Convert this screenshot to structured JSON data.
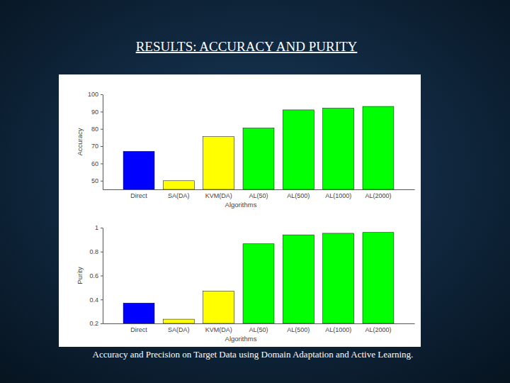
{
  "header": {
    "title": "RESULTS: ACCURACY AND PURITY"
  },
  "caption": "Accuracy and Precision on Target Data using Domain Adaptation and Active Learning.",
  "chart_data": [
    {
      "type": "bar",
      "x_label": "Algorithms",
      "y_label": "Accuracy",
      "categories": [
        "Direct",
        "SA(DA)",
        "KVM(DA)",
        "AL(50)",
        "AL(500)",
        "AL(1000)",
        "AL(2000)"
      ],
      "values": [
        67,
        50,
        75.5,
        80.5,
        91,
        92,
        93
      ],
      "colors": [
        "#0000ff",
        "#ffff00",
        "#ffff00",
        "#00ff00",
        "#00ff00",
        "#00ff00",
        "#00ff00"
      ],
      "ylim": [
        45,
        100
      ],
      "yticks": [
        50,
        60,
        70,
        80,
        90,
        100
      ]
    },
    {
      "type": "bar",
      "x_label": "Algorithms",
      "y_label": "Purity",
      "categories": [
        "Direct",
        "SA(DA)",
        "KVM(DA)",
        "AL(50)",
        "AL(500)",
        "AL(1000)",
        "AL(2000)"
      ],
      "values": [
        0.37,
        0.235,
        0.47,
        0.865,
        0.94,
        0.953,
        0.96
      ],
      "colors": [
        "#0000ff",
        "#ffff00",
        "#ffff00",
        "#00ff00",
        "#00ff00",
        "#00ff00",
        "#00ff00"
      ],
      "ylim": [
        0.2,
        1
      ],
      "yticks": [
        0.2,
        0.4,
        0.6,
        0.8,
        1
      ]
    }
  ]
}
